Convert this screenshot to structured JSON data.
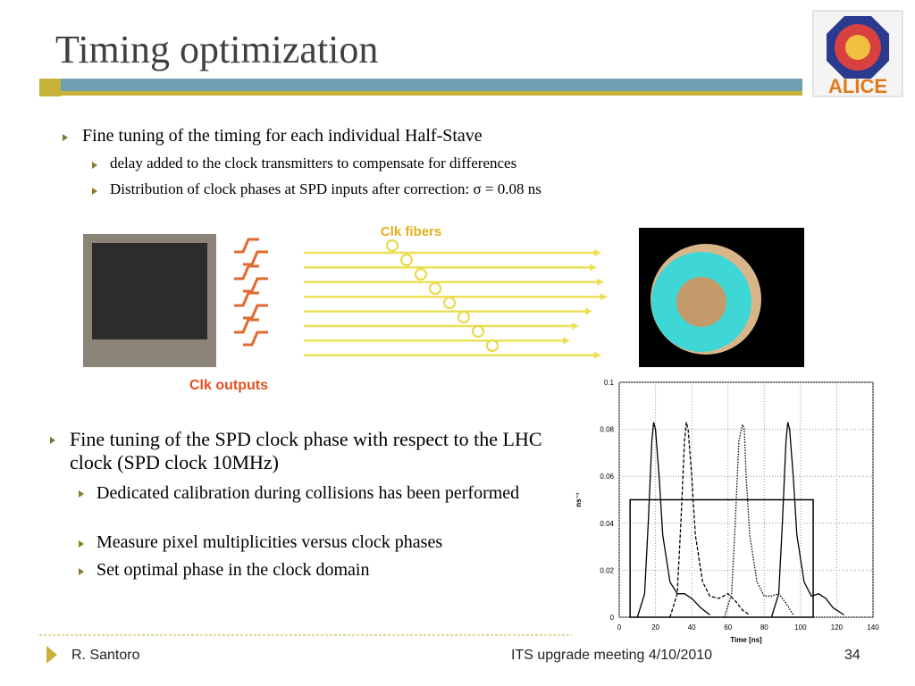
{
  "header": {
    "title": "Timing optimization",
    "logo_text": "ALICE"
  },
  "top_bullet": {
    "text": "Fine tuning of the timing for each individual Half-Stave",
    "sub": [
      "delay added to the clock transmitters to compensate for differences",
      "Distribution of clock phases at SPD inputs after correction:   σ = 0.08 ns"
    ]
  },
  "figure": {
    "fibers_label": "Clk fibers",
    "outputs_label": "Clk outputs"
  },
  "bottom_bullet": {
    "text": "Fine tuning of the SPD clock phase with respect to the LHC clock (SPD clock 10MHz)",
    "sub": [
      "Dedicated calibration during collisions has been performed",
      "Measure pixel multiplicities versus clock phases",
      "Set optimal phase in the clock domain"
    ]
  },
  "footer": {
    "author": "R. Santoro",
    "event": "ITS upgrade meeting 4/10/2010",
    "page": "34"
  },
  "chart_data": {
    "type": "line",
    "x_label": "Time [ns]",
    "y_label": "ns⁻¹",
    "xlim": [
      0,
      140
    ],
    "ylim": [
      0,
      0.1
    ],
    "xticks": [
      0,
      20,
      40,
      60,
      80,
      100,
      120,
      140
    ],
    "yticks": [
      0,
      0.02,
      0.04,
      0.06,
      0.08,
      0.1
    ],
    "grid": true,
    "box": {
      "x": [
        6,
        107
      ],
      "y": 0.05
    },
    "series": [
      {
        "style": "solid",
        "color": "#000000",
        "x": [
          10,
          14,
          16,
          18,
          19,
          20,
          22,
          24,
          28,
          32,
          36,
          40,
          45,
          50
        ],
        "values": [
          0,
          0.01,
          0.04,
          0.075,
          0.083,
          0.08,
          0.06,
          0.035,
          0.015,
          0.01,
          0.01,
          0.008,
          0.004,
          0.001
        ]
      },
      {
        "style": "dashed",
        "color": "#000000",
        "x": [
          28,
          32,
          34,
          36,
          37,
          38,
          40,
          42,
          46,
          50,
          55,
          60,
          64,
          68,
          72
        ],
        "values": [
          0,
          0.01,
          0.04,
          0.075,
          0.083,
          0.08,
          0.06,
          0.035,
          0.015,
          0.009,
          0.008,
          0.01,
          0.007,
          0.003,
          0.001
        ]
      },
      {
        "style": "dotted",
        "color": "#000000",
        "x": [
          58,
          62,
          64,
          66,
          68,
          69,
          70,
          72,
          76,
          80,
          84,
          88,
          92,
          96
        ],
        "values": [
          0,
          0.01,
          0.04,
          0.075,
          0.082,
          0.08,
          0.06,
          0.035,
          0.015,
          0.009,
          0.009,
          0.01,
          0.006,
          0.001
        ]
      },
      {
        "style": "solid",
        "color": "#000000",
        "x": [
          84,
          88,
          90,
          92,
          93,
          94,
          96,
          98,
          102,
          106,
          110,
          114,
          118,
          124
        ],
        "values": [
          0,
          0.01,
          0.04,
          0.075,
          0.083,
          0.08,
          0.06,
          0.035,
          0.015,
          0.009,
          0.01,
          0.008,
          0.004,
          0.001
        ]
      }
    ]
  }
}
